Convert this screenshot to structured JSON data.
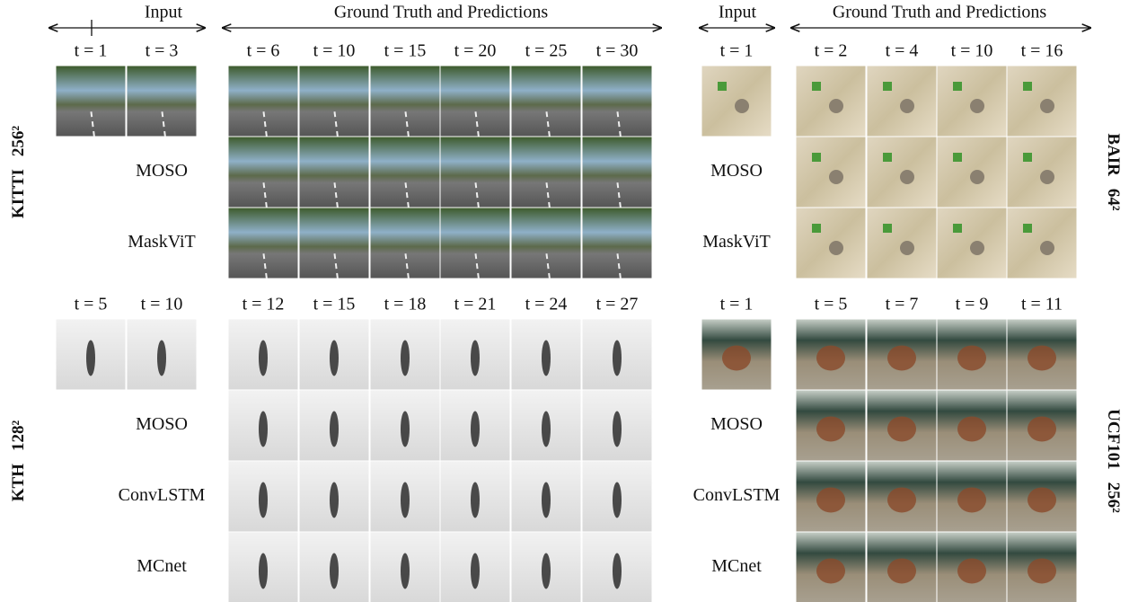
{
  "panels": [
    {
      "header_input": "Input",
      "header_gt": "Ground Truth and Predictions",
      "groups": [
        {
          "dataset": "KITTI",
          "resolution": "256²",
          "input_times": [
            "t = 1",
            "t = 3"
          ],
          "pred_times": [
            "t = 6",
            "t = 10",
            "t = 15",
            "t = 20",
            "t = 25",
            "t = 30"
          ],
          "methods": [
            "MOSO",
            "MaskViT"
          ]
        },
        {
          "dataset": "KTH",
          "resolution": "128²",
          "input_times": [
            "t = 5",
            "t = 10"
          ],
          "pred_times": [
            "t = 12",
            "t = 15",
            "t = 18",
            "t = 21",
            "t = 24",
            "t = 27"
          ],
          "methods": [
            "MOSO",
            "ConvLSTM",
            "MCnet"
          ]
        }
      ]
    },
    {
      "header_input": "Input",
      "header_gt": "Ground Truth and Predictions",
      "groups": [
        {
          "dataset": "BAIR",
          "resolution": "64²",
          "input_times": [
            "t = 1"
          ],
          "pred_times": [
            "t = 2",
            "t = 4",
            "t = 10",
            "t = 16"
          ],
          "methods": [
            "MOSO",
            "MaskViT"
          ]
        },
        {
          "dataset": "UCF101",
          "resolution": "256²",
          "input_times": [
            "t = 1"
          ],
          "pred_times": [
            "t = 5",
            "t = 7",
            "t = 9",
            "t = 11"
          ],
          "methods": [
            "MOSO",
            "ConvLSTM",
            "MCnet"
          ]
        }
      ]
    }
  ]
}
